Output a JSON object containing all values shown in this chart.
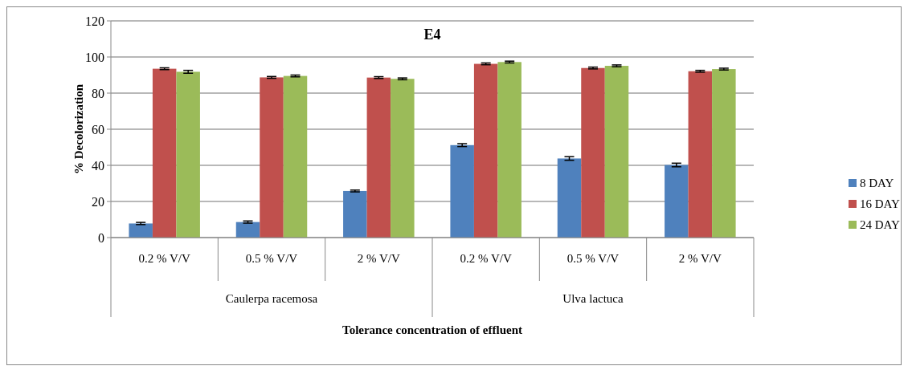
{
  "chart_data": {
    "type": "bar",
    "title": "E4",
    "xlabel": "Tolerance concentration of effluent",
    "ylabel": "% Decolorization",
    "categories": [
      "0.2 % V/V",
      "0.5 % V/V",
      "2 % V/V",
      "0.2 % V/V",
      "0.5 % V/V",
      "2 % V/V"
    ],
    "annotations": [
      "Caulerpa racemosa",
      "Ulva lactuca"
    ],
    "series": [
      {
        "name": "8 DAY",
        "color": "#4f81bd",
        "values": [
          7.8,
          8.6,
          25.8,
          51.2,
          43.8,
          40.2
        ],
        "errors": [
          0.6,
          0.6,
          0.5,
          0.8,
          1,
          1
        ]
      },
      {
        "name": "16 DAY",
        "color": "#c0504d",
        "values": [
          93.5,
          88.7,
          88.6,
          96.2,
          93.9,
          92.1
        ],
        "errors": [
          0.5,
          0.5,
          0.5,
          0.5,
          0.5,
          0.5
        ]
      },
      {
        "name": "24 DAY",
        "color": "#9bbb59",
        "values": [
          91.8,
          89.5,
          87.9,
          97.2,
          95.1,
          93.3
        ],
        "errors": [
          0.8,
          0.5,
          0.5,
          0.5,
          0.5,
          0.5
        ]
      }
    ],
    "ylim": [
      0,
      120
    ],
    "yticks": [
      0,
      20,
      40,
      60,
      80,
      100,
      120
    ],
    "grid": "y",
    "legend": "right"
  }
}
